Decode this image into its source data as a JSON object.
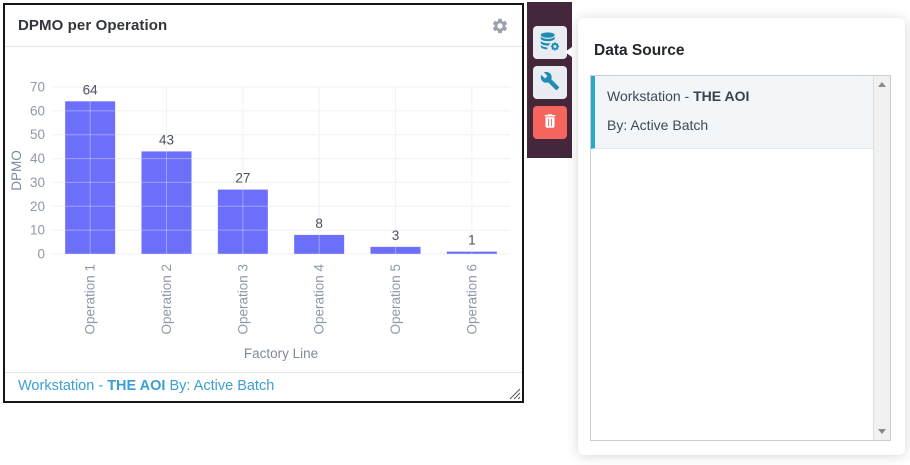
{
  "widget": {
    "title": "DPMO per Operation",
    "footer": {
      "prefix": "Workstation - ",
      "bold": "THE AOI",
      "suffix": " By: Active Batch"
    }
  },
  "chart_data": {
    "type": "bar",
    "categories": [
      "Operation 1",
      "Operation 2",
      "Operation 3",
      "Operation 4",
      "Operation 5",
      "Operation 6"
    ],
    "values": [
      64,
      43,
      27,
      8,
      3,
      1
    ],
    "title": "",
    "xlabel": "Factory Line",
    "ylabel": "DPMO",
    "ylim": [
      0,
      70
    ],
    "ytick_step": 10,
    "grid": true,
    "legend": false,
    "data_labels": true,
    "bar_color": "#6c6ffa",
    "grid_color": "#e9ecf2",
    "tick_label_color": "#8e99a9",
    "axis_title_color": "#7e8a9e",
    "data_label_color": "#4a5160"
  },
  "toolbar": {
    "buttons": [
      {
        "name": "data-source",
        "icon": "database-gear-icon"
      },
      {
        "name": "configure",
        "icon": "wrench-icon"
      },
      {
        "name": "delete",
        "icon": "trash-icon"
      }
    ]
  },
  "panel": {
    "title": "Data Source",
    "items": [
      {
        "line1_prefix": "Workstation - ",
        "line1_bold": "THE AOI",
        "line2": "By: Active Batch",
        "selected": true
      }
    ]
  },
  "colors": {
    "bar": "#6c6ffa",
    "toolbar_bg": "#44273a",
    "tool_icon_teal": "#1f8cb4",
    "trash_red": "#f4655e",
    "footer_blue": "#3b9fd2",
    "selected_item_bg": "#f2f6f9",
    "selected_item_accent": "#2aa9cf"
  }
}
